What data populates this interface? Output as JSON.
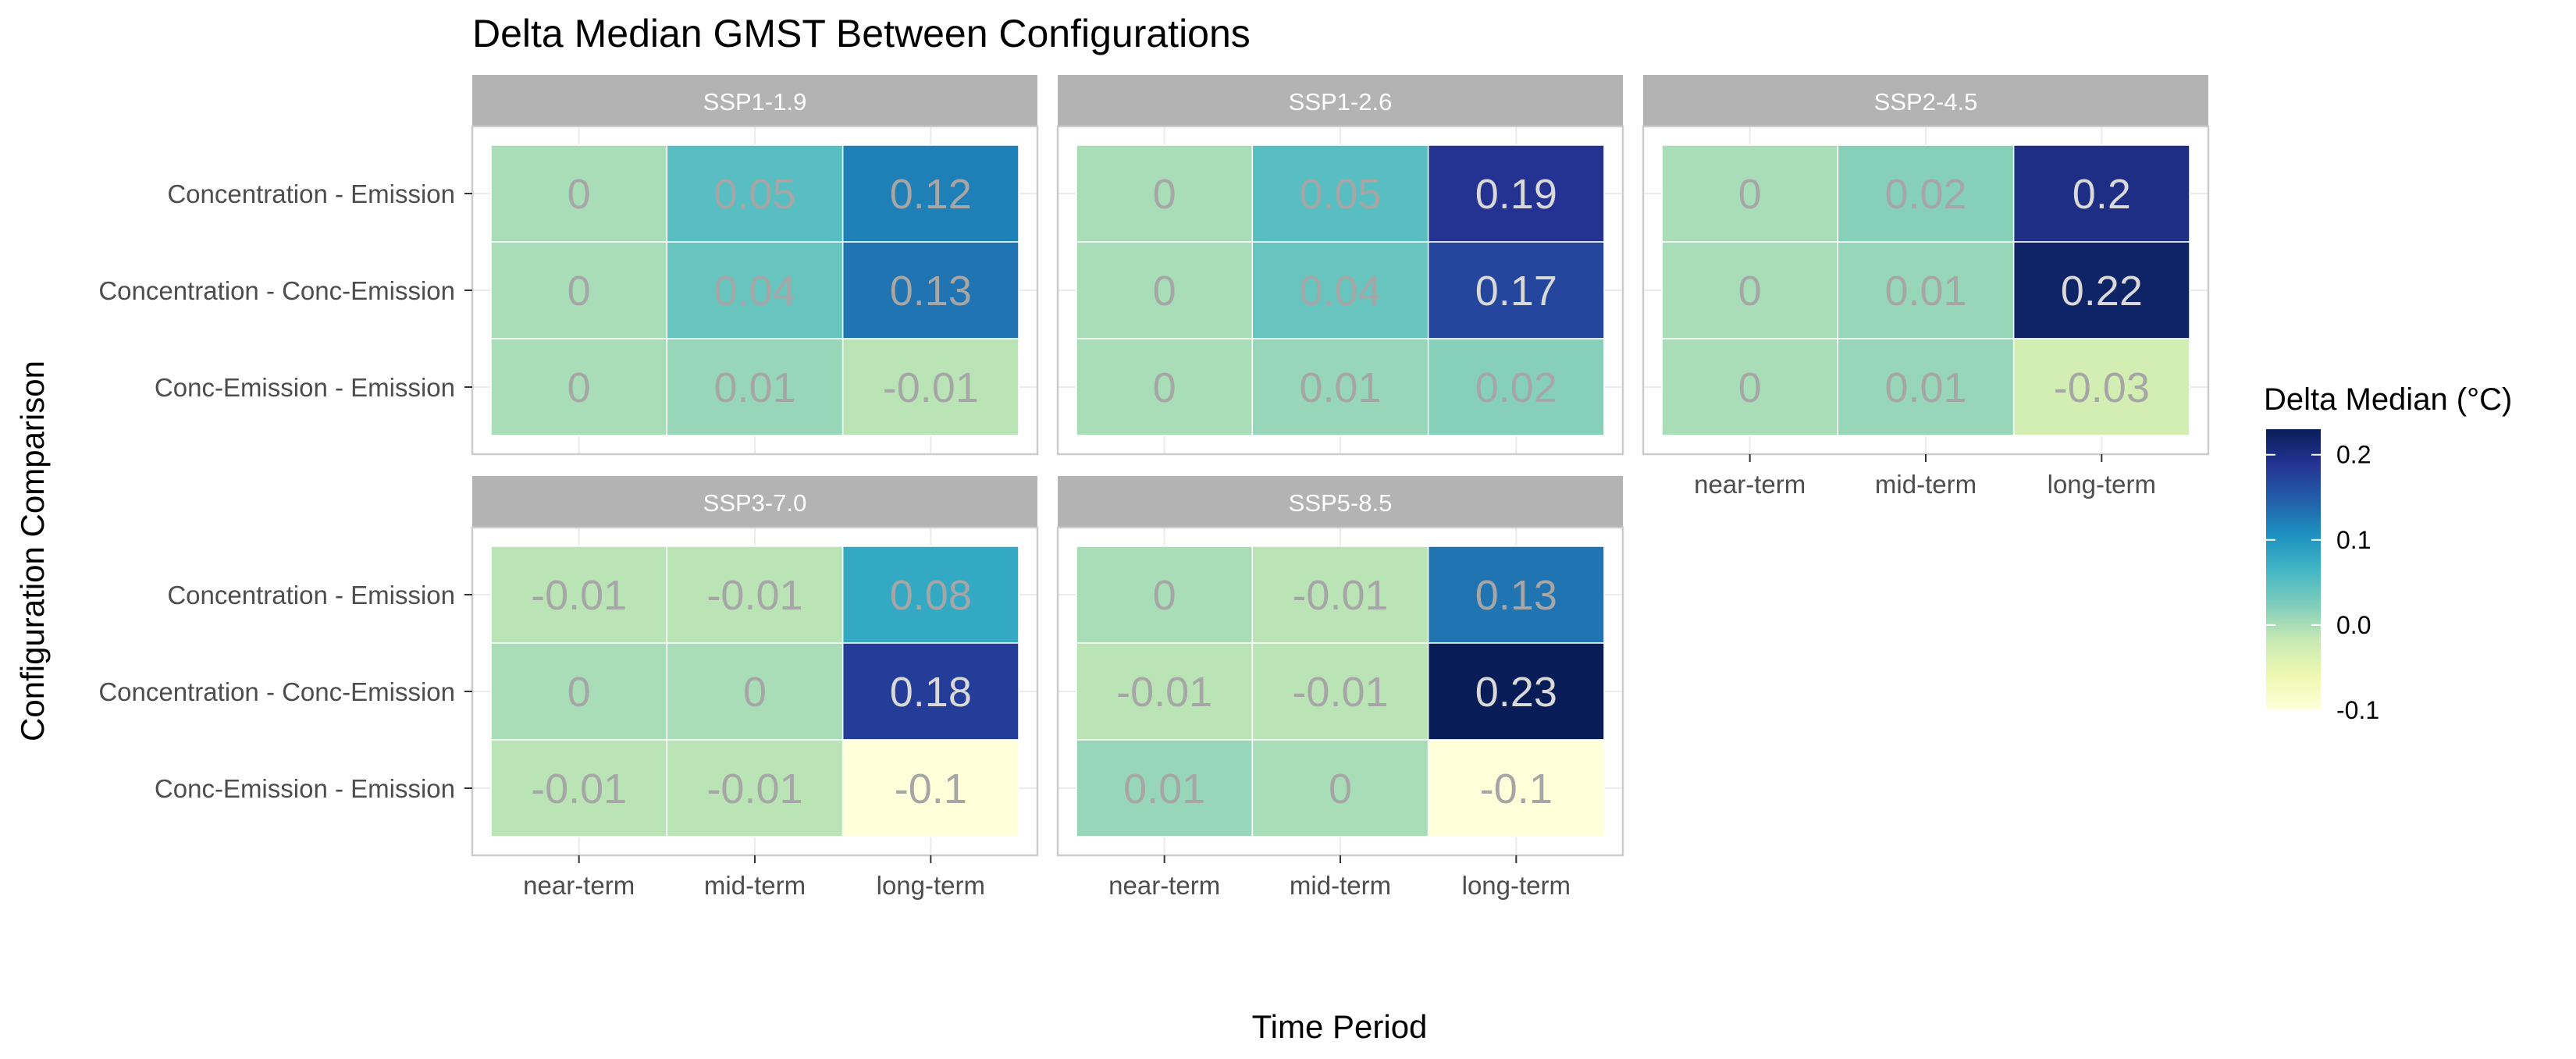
{
  "chart_data": {
    "type": "heatmap",
    "title": "Delta Median GMST Between Configurations",
    "xlabel": "Time Period",
    "ylabel": "Configuration Comparison",
    "x_categories": [
      "near-term",
      "mid-term",
      "long-term"
    ],
    "y_categories": [
      "Concentration - Emission",
      "Concentration - Conc-Emission",
      "Conc-Emission - Emission"
    ],
    "facets": [
      {
        "name": "SSP1-1.9",
        "values": [
          [
            0,
            0.05,
            0.12
          ],
          [
            0,
            0.04,
            0.13
          ],
          [
            0,
            0.01,
            -0.01
          ]
        ]
      },
      {
        "name": "SSP1-2.6",
        "values": [
          [
            0,
            0.05,
            0.19
          ],
          [
            0,
            0.04,
            0.17
          ],
          [
            0,
            0.01,
            0.02
          ]
        ]
      },
      {
        "name": "SSP2-4.5",
        "values": [
          [
            0,
            0.02,
            0.2
          ],
          [
            0,
            0.01,
            0.22
          ],
          [
            0,
            0.01,
            -0.03
          ]
        ]
      },
      {
        "name": "SSP3-7.0",
        "values": [
          [
            -0.01,
            -0.01,
            0.08
          ],
          [
            0,
            0,
            0.18
          ],
          [
            -0.01,
            -0.01,
            -0.1
          ]
        ]
      },
      {
        "name": "SSP5-8.5",
        "values": [
          [
            0,
            -0.01,
            0.13
          ],
          [
            -0.01,
            -0.01,
            0.23
          ],
          [
            0.01,
            0,
            -0.1
          ]
        ]
      }
    ],
    "legend": {
      "title": "Delta Median (°C)",
      "range": [
        -0.1,
        0.23
      ],
      "ticks": [
        0.2,
        0.1,
        0.0,
        -0.1
      ],
      "tick_labels": [
        "0.2",
        "0.1",
        "0.0",
        "-0.1"
      ],
      "placement": "right"
    },
    "colors": {
      "scale": [
        "#ffffd9",
        "#edf8b1",
        "#c7e9b4",
        "#7fcdbb",
        "#41b6c4",
        "#1d91c0",
        "#225ea8",
        "#253494",
        "#081d58"
      ],
      "strip_bg": "#b3b3b3",
      "strip_text": "#ffffff",
      "value_text": "#a6a6a6",
      "value_text_dark": "#d9d9d9",
      "panel_border": "#cccccc",
      "grid": "#ebebeb"
    },
    "grid": true
  }
}
